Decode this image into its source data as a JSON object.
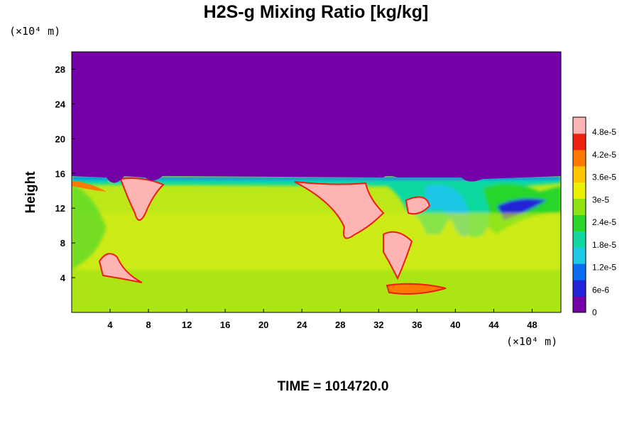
{
  "chart_data": {
    "type": "heatmap",
    "title": "H2S-g Mixing Ratio [kg/kg]",
    "ylabel": "Height",
    "x_unit": "(×10⁴ m)",
    "y_unit": "(×10⁴ m)",
    "xlim": [
      0,
      51
    ],
    "ylim": [
      0,
      30
    ],
    "x_ticks": [
      "4",
      "8",
      "12",
      "16",
      "20",
      "24",
      "28",
      "32",
      "36",
      "40",
      "44",
      "48"
    ],
    "y_ticks": [
      "4",
      "8",
      "12",
      "16",
      "20",
      "24",
      "28"
    ],
    "colorbar": {
      "vmin": 0,
      "vmax": 5.2e-05,
      "tick_labels": [
        "0",
        "6e-6",
        "1.2e-5",
        "1.8e-5",
        "2.4e-5",
        "3e-5",
        "3.6e-5",
        "4.2e-5",
        "4.8e-5"
      ],
      "colors": [
        "#7400a8",
        "#2222d6",
        "#0a6cf0",
        "#1ec8e6",
        "#10d8a0",
        "#28d62a",
        "#8ee010",
        "#ecf000",
        "#ffc400",
        "#ff7a00",
        "#ee1e10",
        "#ffb4b4"
      ]
    },
    "regions": {
      "upper_value": 0,
      "interface_height": 15.6,
      "lower_bulk_value": 3.3e-05,
      "high_plumes_x": [
        [
          6,
          10
        ],
        [
          24,
          31
        ],
        [
          32,
          35
        ],
        [
          28,
          33
        ]
      ],
      "low_plumes_x": [
        [
          3,
          8
        ],
        [
          32,
          38
        ]
      ]
    },
    "footer": "TIME = 1014720.0"
  }
}
